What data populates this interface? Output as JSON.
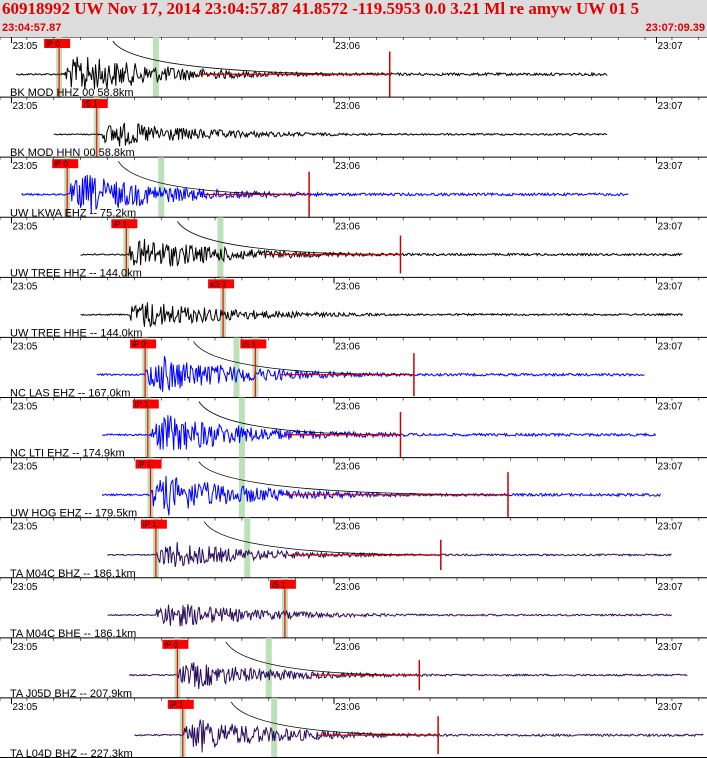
{
  "header": {
    "title": "60918992 UW Nov 17, 2014 23:04:57.87   41.8572 -119.5953  0.0 3.21 Ml re amyw UW 01   5",
    "start_time": "23:04:57.87",
    "end_time": "23:07:09.39"
  },
  "colors": {
    "header_bg": "#dcdcdc",
    "header_text": "#e00000",
    "pick_box": "#ff0000",
    "pick_window": "#b5deb0",
    "trace_black": "#000000",
    "trace_blue": "#0000ff",
    "trace_purple": "#2a0e5e",
    "coda_red": "#cc0000"
  },
  "chart_data": {
    "type": "seismogram",
    "time_axis": {
      "start": "23:04:57.87",
      "end": "23:07:09.39",
      "tick_labels": [
        "23:05",
        "23:06",
        "23:07"
      ],
      "tick_seconds": [
        2.13,
        62.13,
        122.13
      ],
      "span_seconds": 131.52
    },
    "traces": [
      {
        "label": "BK MOD HHZ 00 58.8km",
        "color": "black",
        "data_end_s": 113,
        "onset_s": 12,
        "amp": 0.9,
        "picks": [
          {
            "label": "iP 0",
            "t": 11
          }
        ],
        "coda_line": true,
        "coda_mark_s": 72.5
      },
      {
        "label": "BK MOD HHN 00 58.8km",
        "color": "black",
        "data_end_s": 113,
        "onset_s": 19,
        "amp": 0.6,
        "picks": [
          {
            "label": "iS 1",
            "t": 18
          }
        ],
        "coda_line": false
      },
      {
        "label": "UW LKWA EHZ -- 75.2km",
        "color": "blue",
        "data_end_s": 117,
        "onset_s": 13,
        "amp": 0.9,
        "picks": [
          {
            "label": "iP 0",
            "t": 12.5
          }
        ],
        "coda_line": true,
        "coda_mark_s": 57.5
      },
      {
        "label": "UW TREE HHZ -- 144.0km",
        "color": "black",
        "data_end_s": 127,
        "onset_s": 24,
        "amp": 0.75,
        "picks": [
          {
            "label": "iP 1",
            "t": 23.5
          }
        ],
        "coda_line": true,
        "coda_mark_s": 74.5
      },
      {
        "label": "UW TREE HHE -- 144.0km",
        "color": "black",
        "data_end_s": 127,
        "onset_s": 24,
        "amp": 0.65,
        "picks": [
          {
            "label": "eS 2",
            "t": 41.5
          }
        ],
        "coda_line": false
      },
      {
        "label": "NC LAS EHZ -- 167.0km",
        "color": "blue",
        "data_end_s": 120,
        "onset_s": 27,
        "amp": 0.85,
        "picks": [
          {
            "label": "iP 0",
            "t": 27
          },
          {
            "label": "iS 1",
            "t": 47.5
          }
        ],
        "coda_line": true,
        "coda_mark_s": 77
      },
      {
        "label": "NC LTI EHZ -- 174.9km",
        "color": "blue",
        "data_end_s": 122,
        "onset_s": 28,
        "amp": 0.9,
        "picks": [
          {
            "label": "iP 1",
            "t": 27.5
          }
        ],
        "coda_line": true,
        "coda_mark_s": 74.5
      },
      {
        "label": "UW HOG EHZ -- 179.5km",
        "color": "blue",
        "data_end_s": 123,
        "onset_s": 28,
        "amp": 0.9,
        "picks": [
          {
            "label": "iP 1",
            "t": 28
          }
        ],
        "coda_line": true,
        "coda_mark_s": 94.5
      },
      {
        "label": "TA M04C BHZ -- 186.1km",
        "color": "purple",
        "data_end_s": 125,
        "onset_s": 29,
        "amp": 0.6,
        "picks": [
          {
            "label": "iP 1",
            "t": 29
          }
        ],
        "coda_line": true,
        "coda_mark_s": 82
      },
      {
        "label": "TA M04C BHE -- 186.1km",
        "color": "purple",
        "data_end_s": 125,
        "onset_s": 29,
        "amp": 0.6,
        "picks": [
          {
            "label": "iS 1",
            "t": 53
          }
        ],
        "coda_line": false
      },
      {
        "label": "TA J05D BHZ -- 207.9km",
        "color": "purple",
        "data_end_s": 128,
        "onset_s": 33,
        "amp": 0.6,
        "picks": [
          {
            "label": "iP 0",
            "t": 33
          }
        ],
        "coda_line": true,
        "coda_mark_s": 78
      },
      {
        "label": "TA L04D BHZ -- 227.3km",
        "color": "purple",
        "data_end_s": 131,
        "onset_s": 34,
        "amp": 0.75,
        "picks": [
          {
            "label": "iP 1",
            "t": 34
          }
        ],
        "coda_line": true,
        "coda_mark_s": 81.5
      }
    ]
  }
}
